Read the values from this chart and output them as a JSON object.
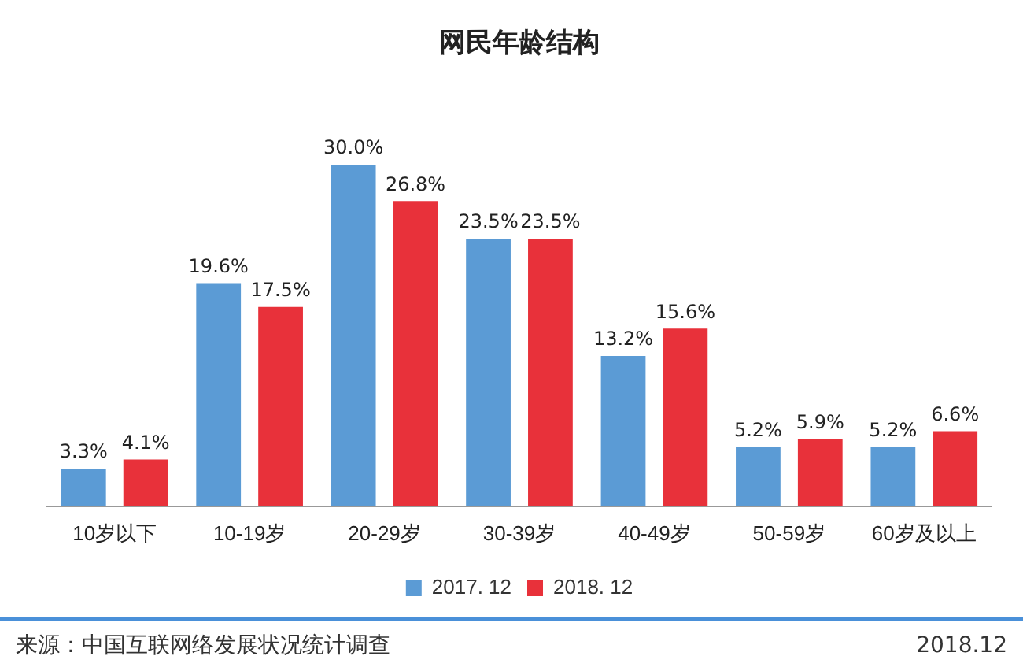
{
  "chart_data": {
    "type": "bar",
    "title": "网民年龄结构",
    "categories": [
      "10岁以下",
      "10-19岁",
      "20-29岁",
      "30-39岁",
      "40-49岁",
      "50-59岁",
      "60岁及以上"
    ],
    "series": [
      {
        "name": "2017. 12",
        "color": "#5b9bd5",
        "values": [
          3.3,
          19.6,
          30.0,
          23.5,
          13.2,
          5.2,
          5.2
        ],
        "value_labels": [
          "3.3%",
          "19.6%",
          "30.0%",
          "23.5%",
          "13.2%",
          "5.2%",
          "5.2%"
        ]
      },
      {
        "name": "2018. 12",
        "color": "#e8313a",
        "values": [
          4.1,
          17.5,
          26.8,
          23.5,
          15.6,
          5.9,
          6.6
        ],
        "value_labels": [
          "4.1%",
          "17.5%",
          "26.8%",
          "23.5%",
          "15.6%",
          "5.9%",
          "6.6%"
        ]
      }
    ],
    "legend": "bottom",
    "grid": false,
    "annotations": [
      "来源：中国互联网络发展状况统计调查",
      "2018.12"
    ]
  }
}
